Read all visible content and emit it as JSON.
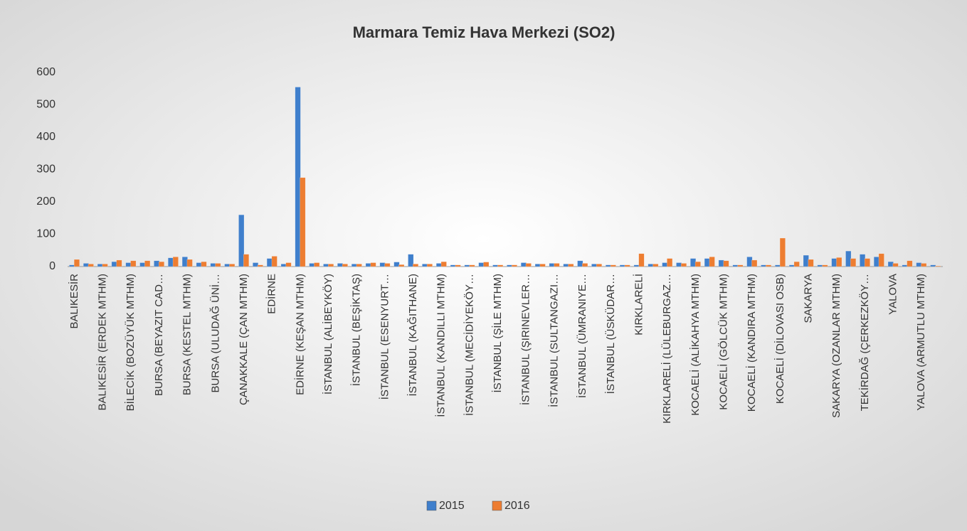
{
  "chart_data": {
    "type": "bar",
    "title": "Marmara Temiz Hava Merkezi (SO2)",
    "categories": [
      "BALIKESİR",
      null,
      "BALIKESİR (ERDEK MTHM)",
      null,
      "BİLECİK (BOZÜYÜK MTHM)",
      null,
      "BURSA (BEYAZIT CAD…",
      null,
      "BURSA (KESTEL MTHM)",
      null,
      "BURSA (ULUDAĞ ÜNİ…",
      null,
      "ÇANAKKALE (ÇAN MTHM)",
      null,
      "EDİRNE",
      null,
      "EDİRNE (KEŞAN MTHM)",
      null,
      "İSTANBUL (ALİBEYKÖY)",
      null,
      "İSTANBUL (BEŞİKTAŞ)",
      null,
      "İSTANBUL (ESENYURT…",
      null,
      "İSTANBUL (KAĞITHANE)",
      null,
      "İSTANBUL (KANDILLI MTHM)",
      null,
      "İSTANBUL (MECİDİYEKÖY…",
      null,
      "İSTANBUL (ŞİLE MTHM)",
      null,
      "İSTANBUL (ŞIRINEVLER…",
      null,
      "İSTANBUL (SULTANGAZI…",
      null,
      "İSTANBUL (ÜMRANIYE…",
      null,
      "İSTANBUL (ÜSKÜDAR…",
      null,
      "KIRKLARELİ",
      null,
      "KIRKLARELİ (LÜLEBURGAZ…",
      null,
      "KOCAELİ (ALİKAHYA MTHM)",
      null,
      "KOCAELİ (GÖLCÜK MTHM)",
      null,
      "KOCAELİ (KANDIRA MTHM)",
      null,
      "KOCAELİ (DİLOVASI OSB)",
      null,
      "SAKARYA",
      null,
      "SAKARYA (OZANLAR MTHM)",
      null,
      "TEKİRDAĞ (ÇERKEZKÖY…",
      null,
      "YALOVA",
      null,
      "YALOVA (ARMUTLU MTHM)",
      null
    ],
    "series": [
      {
        "name": "2015",
        "color": "#3f7fcc",
        "values": [
          5,
          10,
          8,
          15,
          12,
          12,
          18,
          27,
          30,
          12,
          10,
          8,
          160,
          12,
          25,
          8,
          555,
          10,
          8,
          10,
          8,
          10,
          12,
          14,
          38,
          8,
          10,
          5,
          5,
          12,
          5,
          5,
          12,
          8,
          10,
          8,
          18,
          8,
          5,
          5,
          5,
          8,
          12,
          12,
          25,
          25,
          20,
          5,
          30,
          5,
          5,
          5,
          35,
          5,
          25,
          48,
          38,
          30,
          15,
          5,
          12,
          5
        ]
      },
      {
        "name": "2016",
        "color": "#ed7d31",
        "values": [
          22,
          8,
          8,
          20,
          18,
          18,
          15,
          30,
          22,
          15,
          10,
          8,
          38,
          5,
          32,
          12,
          275,
          12,
          8,
          8,
          8,
          12,
          10,
          6,
          8,
          8,
          15,
          5,
          5,
          14,
          5,
          5,
          10,
          8,
          10,
          8,
          10,
          8,
          5,
          5,
          40,
          8,
          25,
          10,
          15,
          30,
          18,
          5,
          20,
          5,
          88,
          15,
          22,
          5,
          28,
          25,
          25,
          40,
          10,
          18,
          10,
          2
        ]
      }
    ],
    "ylim": [
      0,
      600
    ],
    "yticks": [
      0,
      100,
      200,
      300,
      400,
      500,
      600
    ],
    "grid": false,
    "legend": "bottom"
  }
}
